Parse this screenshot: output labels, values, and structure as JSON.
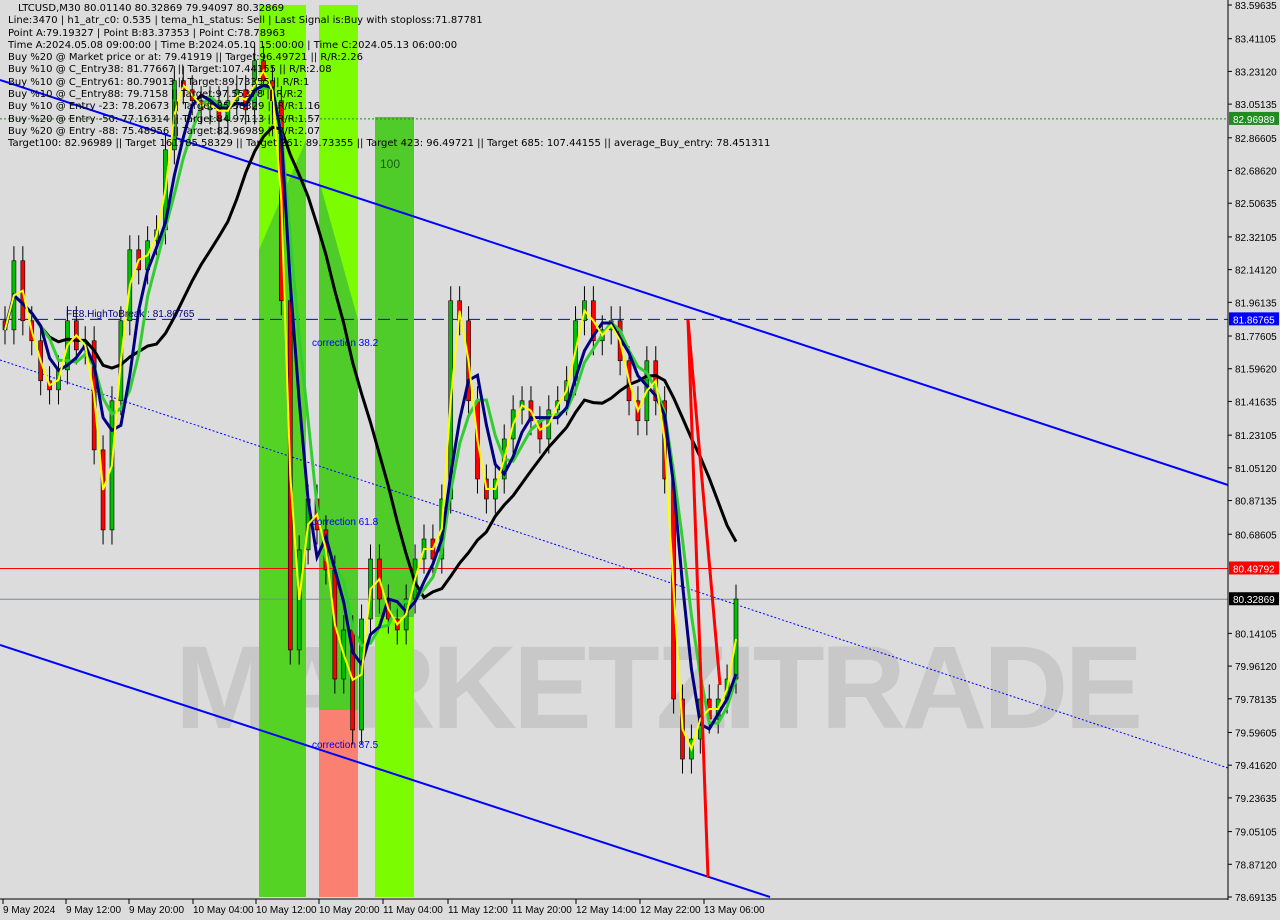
{
  "header": {
    "title": "LTCUSD,M30  80.01140 80.32869 79.94097 80.32869",
    "lines": [
      "Line:3470 | h1_atr_c0: 0.535 | tema_h1_status: Sell | Last Signal is:Buy with stoploss:71.87781",
      "Point A:79.19327 | Point B:83.37353 | Point C:78.78963",
      "Time A:2024.05.08 09:00:00 | Time B:2024.05.10 15:00:00 | Time C:2024.05.13 06:00:00",
      "Buy %20 @ Market price or at: 79.41919 || Target:96.49721 || R/R:2.26",
      "Buy %10 @ C_Entry38: 81.77667 || Target:107.44155 || R/R:2.08",
      "Buy %10 @ C_Entry61: 80.79013 || Target:89.73355 || R/R:1",
      "Buy %10 @ C_Entry88: 79.7158 || Target:97.55378 || R/R:2",
      "Buy %10 @ Entry -23: 78.20673 || Target:85.58329 || R/R:1.16",
      "Buy %20 @ Entry -50: 77.16314 || Target:84.97113 || R/R:1.57",
      "Buy %20 @ Entry -88: 75.48956 || Target:82.96989 || R/R:2.07",
      "Target100: 82.96989 || Target 161: 85.58329 || Target 261: 89.73355 || Target 423: 96.49721 || Target 685: 107.44155 || average_Buy_entry: 78.451311"
    ]
  },
  "annotations": {
    "high_to_break": "FE8.HighToBreak : 81.86765",
    "correction_382": "correction 38.2",
    "correction_618": "correction 61.8",
    "correction_875": "correction 87.5",
    "level_100": "100",
    "watermark": "MARKETZITRADE"
  },
  "colors": {
    "background": "#dcdcdc",
    "bull_candle": "#00c000",
    "bear_candle": "#ff0000",
    "trend_channel": "#0000ff",
    "zone_green": "#7cfc00",
    "zone_green_dark": "#3cb83c",
    "zone_red": "#fa8072",
    "ma_yellow": "#ffff00",
    "ma_navy": "#000080",
    "ma_green": "#32cd32",
    "ma_black": "#000000"
  },
  "chart_data": {
    "type": "candlestick",
    "symbol": "LTCUSD",
    "timeframe": "M30",
    "ylim": [
      78.69135,
      83.59635
    ],
    "y_ticks": [
      "83.59635",
      "83.41105",
      "83.23120",
      "83.05135",
      "82.86605",
      "82.68620",
      "82.50635",
      "82.32105",
      "82.14120",
      "81.96135",
      "81.77605",
      "81.59620",
      "81.41635",
      "81.23105",
      "81.05120",
      "80.87135",
      "80.68605",
      "80.14105",
      "79.96120",
      "79.78135",
      "79.59605",
      "79.41620",
      "79.23635",
      "79.05105",
      "78.87120",
      "78.69135"
    ],
    "x_ticks": [
      "9 May 2024",
      "9 May 12:00",
      "9 May 20:00",
      "10 May 04:00",
      "10 May 12:00",
      "10 May 20:00",
      "11 May 04:00",
      "11 May 12:00",
      "11 May 20:00",
      "12 May 14:00",
      "12 May 22:00",
      "13 May 06:00"
    ],
    "closes": [
      81.81,
      82.19,
      81.86,
      81.75,
      81.53,
      81.48,
      81.59,
      81.86,
      81.7,
      81.75,
      81.15,
      80.71,
      81.42,
      81.86,
      82.25,
      82.14,
      82.3,
      82.36,
      82.8,
      83.18,
      83.13,
      83.07,
      83.02,
      83.07,
      82.96,
      83.07,
      83.13,
      83.02,
      83.29,
      83.18,
      83.07,
      81.97,
      80.05,
      80.6,
      80.88,
      80.71,
      80.49,
      79.89,
      80.16,
      79.61,
      80.22,
      80.55,
      80.33,
      80.22,
      80.16,
      80.33,
      80.55,
      80.66,
      80.55,
      80.88,
      81.97,
      81.86,
      81.42,
      80.99,
      80.88,
      80.99,
      81.21,
      81.37,
      81.42,
      81.31,
      81.21,
      81.37,
      81.42,
      81.53,
      81.86,
      81.97,
      81.75,
      81.81,
      81.86,
      81.64,
      81.42,
      81.31,
      81.64,
      81.42,
      80.99,
      79.78,
      79.45,
      79.56,
      79.78,
      79.67,
      79.78,
      79.89,
      80.33
    ],
    "horizontal_levels": [
      {
        "label": "82.96989",
        "value": 82.96989,
        "color": "#228b22",
        "style": "dotted"
      },
      {
        "label": "81.86765",
        "value": 81.86765,
        "color": "#0000ff",
        "style": "dashed"
      },
      {
        "label": "80.49792",
        "value": 80.49792,
        "color": "#ff0000",
        "style": "solid"
      },
      {
        "label": "80.32869",
        "value": 80.32869,
        "color": "#000000",
        "style": "solid"
      }
    ]
  }
}
